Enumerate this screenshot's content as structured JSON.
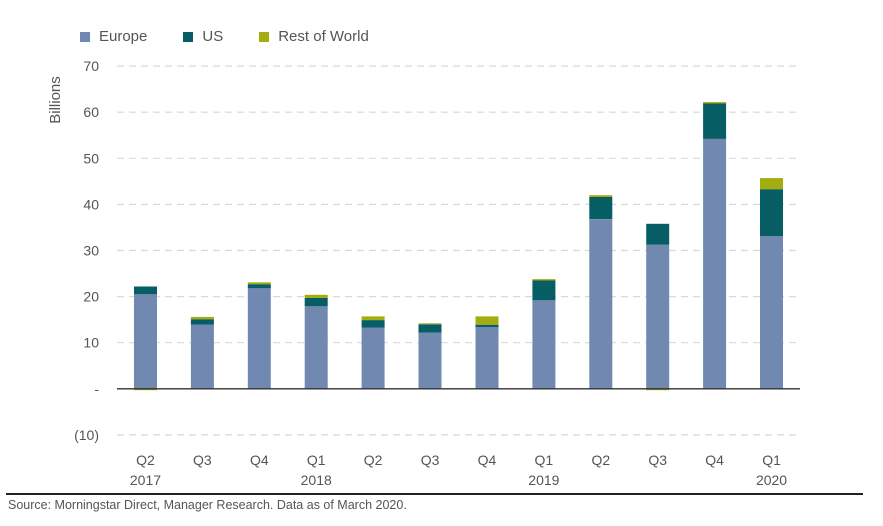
{
  "chart_data": {
    "type": "bar",
    "stacked": true,
    "title": "",
    "xlabel": "",
    "ylabel": "Billions",
    "ylim": [
      -10,
      70
    ],
    "yticks": [
      -10,
      0,
      10,
      20,
      30,
      40,
      50,
      60,
      70
    ],
    "ytick_labels": [
      "(10)",
      "-",
      "10",
      "20",
      "30",
      "40",
      "50",
      "60",
      "70"
    ],
    "grid": true,
    "legend_position": "top-left",
    "categories": [
      "Q2 2017",
      "Q3 2017",
      "Q4 2017",
      "Q1 2018",
      "Q2 2018",
      "Q3 2018",
      "Q4 2018",
      "Q1 2019",
      "Q2 2019",
      "Q3 2019",
      "Q4 2019",
      "Q1 2020"
    ],
    "category_labels": [
      {
        "quarter": "Q2",
        "year": "2017"
      },
      {
        "quarter": "Q3",
        "year": ""
      },
      {
        "quarter": "Q4",
        "year": ""
      },
      {
        "quarter": "Q1",
        "year": "2018"
      },
      {
        "quarter": "Q2",
        "year": ""
      },
      {
        "quarter": "Q3",
        "year": ""
      },
      {
        "quarter": "Q4",
        "year": ""
      },
      {
        "quarter": "Q1",
        "year": "2019"
      },
      {
        "quarter": "Q2",
        "year": ""
      },
      {
        "quarter": "Q3",
        "year": ""
      },
      {
        "quarter": "Q4",
        "year": ""
      },
      {
        "quarter": "Q1",
        "year": "2020"
      }
    ],
    "series": [
      {
        "name": "Europe",
        "color": "#7189b0",
        "values": [
          20.5,
          13.9,
          21.8,
          17.9,
          13.3,
          12.2,
          13.4,
          19.2,
          36.8,
          31.3,
          54.2,
          33.1
        ]
      },
      {
        "name": "US",
        "color": "#065d64",
        "values": [
          1.7,
          1.2,
          0.9,
          1.8,
          1.6,
          1.8,
          0.5,
          4.3,
          4.8,
          4.5,
          7.7,
          10.2
        ]
      },
      {
        "name": "Rest of World",
        "color": "#a3ad10",
        "values": [
          -0.3,
          0.5,
          0.4,
          0.7,
          0.8,
          0.2,
          1.8,
          0.3,
          0.4,
          -0.3,
          0.3,
          2.4
        ]
      }
    ]
  },
  "source": "Source: Morningstar Direct, Manager Research. Data as of March 2020."
}
